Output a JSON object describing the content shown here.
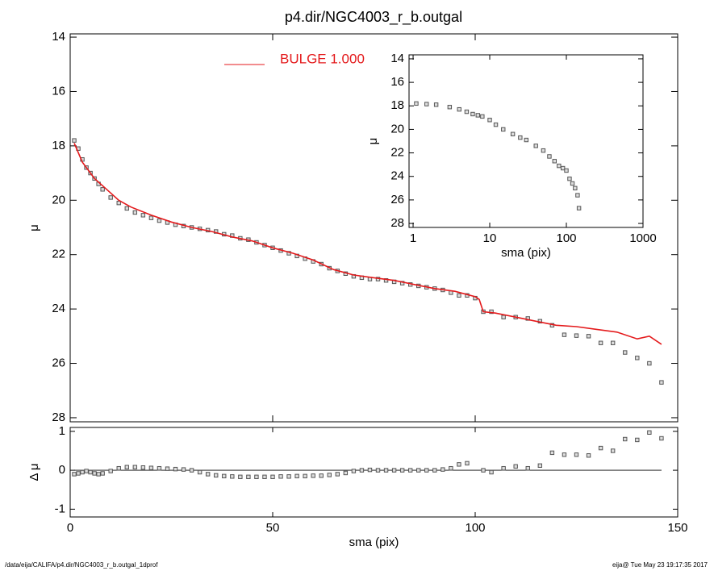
{
  "title": "p4.dir/NGC4003_r_b.outgal",
  "footer_left": "/data/eija/CALIFA/p4.dir/NGC4003_r_b.outgal_1dprof",
  "footer_right": "eija@  Tue May 23 19:17:35 2017",
  "chart_data": [
    {
      "type": "scatter",
      "ylabel": "μ",
      "xlim": [
        0,
        150
      ],
      "xticks": [
        0,
        50,
        100,
        150
      ],
      "ylim": [
        28.15,
        13.88
      ],
      "yticks": [
        14,
        16,
        18,
        20,
        22,
        24,
        26,
        28
      ],
      "series": [
        {
          "color": "#555555",
          "marker": "square",
          "x": [
            1,
            2,
            3,
            4,
            5,
            6,
            7,
            8,
            10,
            12,
            14,
            16,
            18,
            20,
            22,
            24,
            26,
            28,
            30,
            32,
            34,
            36,
            38,
            40,
            42,
            44,
            46,
            48,
            50,
            52,
            54,
            56,
            58,
            60,
            62,
            64,
            66,
            68,
            70,
            72,
            74,
            76,
            78,
            80,
            82,
            84,
            86,
            88,
            90,
            92,
            94,
            96,
            98,
            100,
            102,
            104,
            107,
            110,
            113,
            116,
            119,
            122,
            125,
            128,
            131,
            134,
            137,
            140,
            143,
            146
          ],
          "values": [
            17.8,
            18.1,
            18.5,
            18.8,
            19.0,
            19.2,
            19.4,
            19.6,
            19.9,
            20.1,
            20.3,
            20.45,
            20.55,
            20.65,
            20.75,
            20.82,
            20.9,
            20.95,
            21.0,
            21.05,
            21.1,
            21.15,
            21.25,
            21.3,
            21.4,
            21.45,
            21.55,
            21.65,
            21.75,
            21.85,
            21.95,
            22.05,
            22.15,
            22.25,
            22.35,
            22.5,
            22.6,
            22.7,
            22.8,
            22.85,
            22.9,
            22.9,
            22.95,
            23.0,
            23.05,
            23.1,
            23.15,
            23.2,
            23.25,
            23.3,
            23.4,
            23.5,
            23.5,
            23.6,
            24.1,
            24.1,
            24.3,
            24.3,
            24.35,
            24.45,
            24.6,
            24.95,
            24.98,
            25.0,
            25.25,
            25.25,
            25.6,
            25.8,
            26.0,
            26.7
          ]
        },
        {
          "name": "BULGE  1.000",
          "color": "#e41a1c",
          "marker": "line",
          "x": [
            1,
            3,
            6,
            9,
            12,
            15,
            20,
            25,
            30,
            35,
            40,
            45,
            50,
            55,
            60,
            65,
            70,
            75,
            80,
            85,
            90,
            95,
            100,
            101,
            102,
            105,
            110,
            115,
            120,
            125,
            130,
            135,
            140,
            143,
            146
          ],
          "values": [
            17.9,
            18.6,
            19.2,
            19.6,
            20.0,
            20.25,
            20.55,
            20.8,
            21.0,
            21.15,
            21.35,
            21.5,
            21.75,
            21.95,
            22.2,
            22.55,
            22.75,
            22.85,
            22.95,
            23.1,
            23.25,
            23.35,
            23.55,
            23.65,
            24.1,
            24.15,
            24.3,
            24.45,
            24.6,
            24.65,
            24.75,
            24.85,
            25.1,
            25.0,
            25.3
          ]
        }
      ]
    },
    {
      "type": "scatter",
      "ylabel": "Δ μ",
      "xlabel": "sma (pix)",
      "xlim": [
        0,
        150
      ],
      "xticks": [
        0,
        50,
        100,
        150
      ],
      "ylim": [
        -1.2,
        1.1
      ],
      "yticks": [
        -1,
        0,
        1
      ],
      "hline": 0,
      "series": [
        {
          "color": "#555555",
          "marker": "square",
          "x": [
            1,
            2,
            3,
            4,
            5,
            6,
            7,
            8,
            10,
            12,
            14,
            16,
            18,
            20,
            22,
            24,
            26,
            28,
            30,
            32,
            34,
            36,
            38,
            40,
            42,
            44,
            46,
            48,
            50,
            52,
            54,
            56,
            58,
            60,
            62,
            64,
            66,
            68,
            70,
            72,
            74,
            76,
            78,
            80,
            82,
            84,
            86,
            88,
            90,
            92,
            94,
            96,
            98,
            102,
            104,
            107,
            110,
            113,
            116,
            119,
            122,
            125,
            128,
            131,
            134,
            137,
            140,
            143,
            146
          ],
          "values": [
            -0.1,
            -0.08,
            -0.05,
            -0.02,
            -0.05,
            -0.08,
            -0.1,
            -0.08,
            -0.02,
            0.05,
            0.08,
            0.08,
            0.07,
            0.06,
            0.05,
            0.04,
            0.03,
            0.02,
            0,
            -0.05,
            -0.1,
            -0.13,
            -0.15,
            -0.16,
            -0.17,
            -0.17,
            -0.17,
            -0.17,
            -0.17,
            -0.16,
            -0.16,
            -0.15,
            -0.15,
            -0.14,
            -0.14,
            -0.12,
            -0.1,
            -0.07,
            -0.02,
            0,
            0.01,
            0,
            0,
            0,
            0,
            0,
            0,
            0,
            0,
            0.02,
            0.05,
            0.15,
            0.18,
            0,
            -0.05,
            0.05,
            0.1,
            0.05,
            0.12,
            0.45,
            0.4,
            0.4,
            0.38,
            0.57,
            0.5,
            0.8,
            0.78,
            0.97,
            0.82
          ]
        }
      ]
    },
    {
      "type": "scatter",
      "ylabel": "μ",
      "xlabel": "sma (pix)",
      "xscale": "log",
      "xlim": [
        0.885,
        1000
      ],
      "xticks": [
        1,
        10,
        100,
        1000
      ],
      "ylim": [
        28.34,
        13.66
      ],
      "yticks": [
        14,
        16,
        18,
        20,
        22,
        24,
        26,
        28
      ],
      "series": [
        {
          "color": "#555555",
          "marker": "square",
          "x": [
            1.1,
            1.5,
            2,
            3,
            4,
            5,
            6,
            7,
            8,
            10,
            12,
            15,
            20,
            25,
            30,
            40,
            50,
            60,
            70,
            80,
            90,
            100,
            110,
            120,
            130,
            140,
            146
          ],
          "values": [
            17.8,
            17.85,
            17.9,
            18.1,
            18.3,
            18.5,
            18.7,
            18.8,
            18.9,
            19.2,
            19.6,
            20.0,
            20.4,
            20.7,
            20.9,
            21.4,
            21.8,
            22.3,
            22.7,
            23.1,
            23.3,
            23.5,
            24.2,
            24.6,
            25.0,
            25.6,
            26.7
          ]
        }
      ]
    }
  ]
}
